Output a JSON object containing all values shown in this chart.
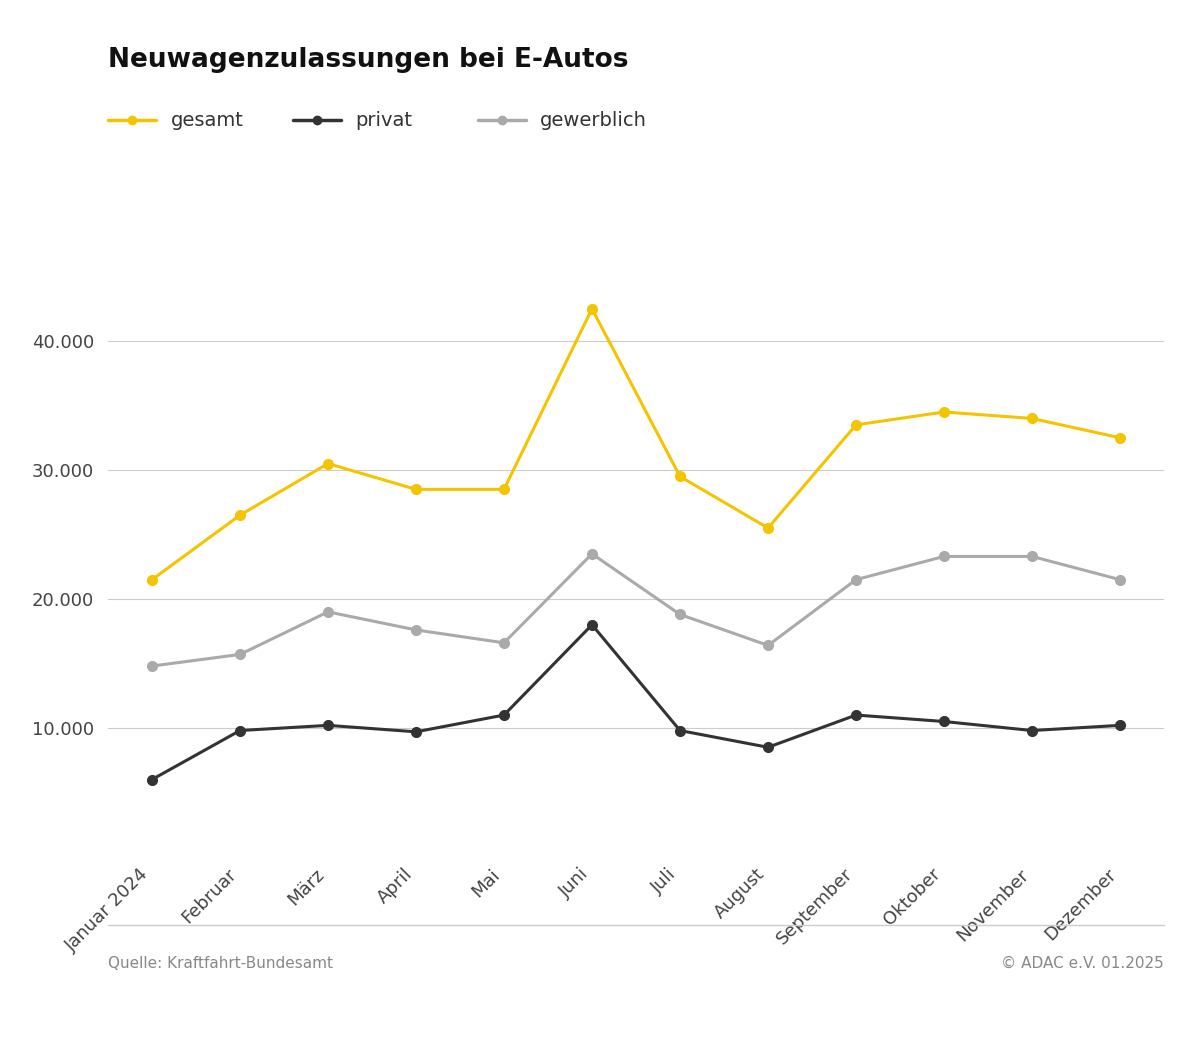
{
  "title": "Neuwagenzulassungen bei E-Autos",
  "months": [
    "Januar 2024",
    "Februar",
    "März",
    "April",
    "Mai",
    "Juni",
    "Juli",
    "August",
    "September",
    "Oktober",
    "November",
    "Dezember"
  ],
  "gesamt": [
    21500,
    26500,
    30500,
    28500,
    28500,
    42500,
    29500,
    25500,
    33500,
    34500,
    34000,
    32500
  ],
  "privat": [
    6000,
    9800,
    10200,
    9700,
    11000,
    18000,
    9800,
    8500,
    11000,
    10500,
    9800,
    10200
  ],
  "gewerblich": [
    14800,
    15700,
    19000,
    17600,
    16600,
    23500,
    18800,
    16400,
    21500,
    23300,
    23300,
    21500
  ],
  "gesamt_color": "#F5C400",
  "privat_color": "#333333",
  "gewerblich_color": "#AAAAAA",
  "background_color": "#FFFFFF",
  "grid_color": "#CCCCCC",
  "source_left": "Quelle: Kraftfahrt-Bundesamt",
  "source_right": "© ADAC e.V. 01.2025",
  "ylim": [
    0,
    47000
  ],
  "yticks": [
    10000,
    20000,
    30000,
    40000
  ],
  "ytick_labels": [
    "10.000",
    "20.000",
    "30.000",
    "40.000"
  ],
  "line_width": 2.2,
  "marker_size": 7,
  "legend_labels": [
    "gesamt",
    "privat",
    "gewerblich"
  ],
  "title_fontsize": 19,
  "tick_fontsize": 13,
  "legend_fontsize": 14,
  "footer_fontsize": 11
}
